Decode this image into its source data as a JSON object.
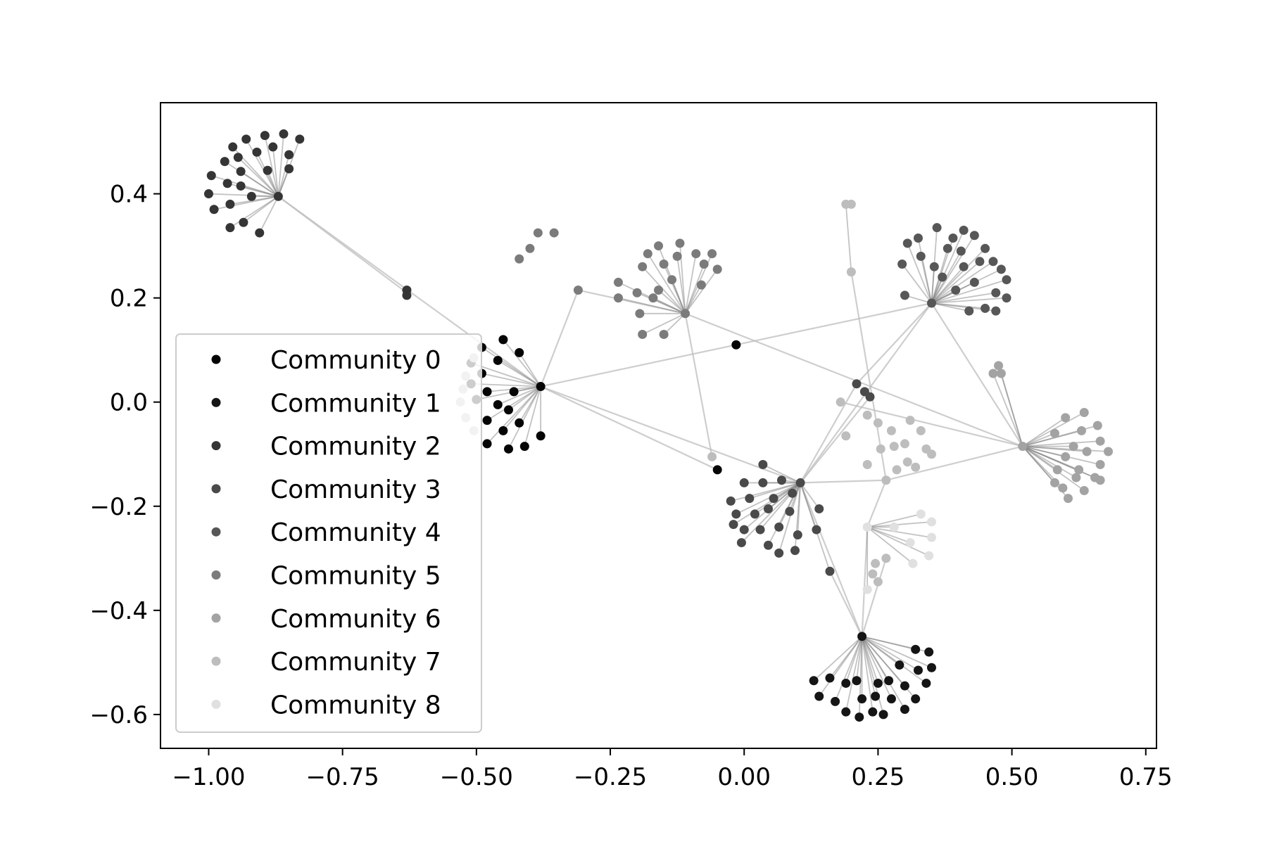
{
  "chart_data": {
    "type": "scatter",
    "title": "",
    "xlabel": "",
    "ylabel": "",
    "xlim": [
      -1.09,
      0.77
    ],
    "ylim": [
      -0.665,
      0.575
    ],
    "xticks": [
      -1.0,
      -0.75,
      -0.5,
      -0.25,
      0.0,
      0.25,
      0.5,
      0.75
    ],
    "xtick_labels": [
      "−1.00",
      "−0.75",
      "−0.50",
      "−0.25",
      "0.00",
      "0.25",
      "0.50",
      "0.75"
    ],
    "yticks": [
      0.4,
      0.2,
      0.0,
      -0.2,
      -0.4,
      -0.6
    ],
    "ytick_labels": [
      "0.4",
      "0.2",
      "0.0",
      "−0.2",
      "−0.4",
      "−0.6"
    ],
    "grid": false,
    "legend_position": "center-left",
    "edge_color": "#bdbdbd",
    "series": [
      {
        "name": "Community 0",
        "color": "#050505",
        "points": [
          [
            -0.38,
            0.03
          ],
          [
            -0.015,
            0.11
          ],
          [
            -0.05,
            -0.13
          ],
          [
            -0.45,
            0.12
          ],
          [
            -0.49,
            0.105
          ],
          [
            -0.42,
            0.095
          ],
          [
            -0.46,
            0.08
          ],
          [
            -0.51,
            0.075
          ],
          [
            -0.49,
            0.055
          ],
          [
            -0.51,
            0.035
          ],
          [
            -0.48,
            0.02
          ],
          [
            -0.43,
            0.02
          ],
          [
            -0.5,
            0.005
          ],
          [
            -0.46,
            -0.005
          ],
          [
            -0.44,
            -0.015
          ],
          [
            -0.48,
            -0.035
          ],
          [
            -0.42,
            -0.04
          ],
          [
            -0.45,
            -0.055
          ],
          [
            -0.38,
            -0.065
          ],
          [
            -0.48,
            -0.08
          ],
          [
            -0.44,
            -0.09
          ],
          [
            -0.41,
            -0.085
          ]
        ]
      },
      {
        "name": "Community 1",
        "color": "#151515",
        "points": [
          [
            0.22,
            -0.45
          ],
          [
            0.32,
            -0.475
          ],
          [
            0.345,
            -0.48
          ],
          [
            0.29,
            -0.505
          ],
          [
            0.325,
            -0.515
          ],
          [
            0.35,
            -0.51
          ],
          [
            0.13,
            -0.535
          ],
          [
            0.16,
            -0.53
          ],
          [
            0.19,
            -0.54
          ],
          [
            0.21,
            -0.535
          ],
          [
            0.25,
            -0.54
          ],
          [
            0.27,
            -0.535
          ],
          [
            0.3,
            -0.545
          ],
          [
            0.34,
            -0.54
          ],
          [
            0.14,
            -0.565
          ],
          [
            0.17,
            -0.575
          ],
          [
            0.22,
            -0.57
          ],
          [
            0.245,
            -0.565
          ],
          [
            0.275,
            -0.57
          ],
          [
            0.32,
            -0.57
          ],
          [
            0.19,
            -0.595
          ],
          [
            0.24,
            -0.595
          ],
          [
            0.26,
            -0.6
          ],
          [
            0.3,
            -0.59
          ],
          [
            0.215,
            -0.605
          ]
        ]
      },
      {
        "name": "Community 2",
        "color": "#353535",
        "points": [
          [
            -0.87,
            0.395
          ],
          [
            -0.63,
            0.215
          ],
          [
            -0.63,
            0.205
          ],
          [
            -0.83,
            0.505
          ],
          [
            -0.86,
            0.515
          ],
          [
            -0.895,
            0.512
          ],
          [
            -0.93,
            0.505
          ],
          [
            -0.955,
            0.49
          ],
          [
            -0.85,
            0.475
          ],
          [
            -0.88,
            0.49
          ],
          [
            -0.91,
            0.48
          ],
          [
            -0.945,
            0.47
          ],
          [
            -0.97,
            0.462
          ],
          [
            -0.89,
            0.445
          ],
          [
            -0.94,
            0.443
          ],
          [
            -0.85,
            0.448
          ],
          [
            -0.995,
            0.435
          ],
          [
            -0.965,
            0.42
          ],
          [
            -0.94,
            0.415
          ],
          [
            -1.0,
            0.4
          ],
          [
            -0.92,
            0.395
          ],
          [
            -0.96,
            0.38
          ],
          [
            -0.99,
            0.37
          ],
          [
            -0.935,
            0.345
          ],
          [
            -0.96,
            0.335
          ],
          [
            -0.905,
            0.325
          ]
        ]
      },
      {
        "name": "Community 3",
        "color": "#4a4a4a",
        "points": [
          [
            0.105,
            -0.155
          ],
          [
            0.21,
            0.035
          ],
          [
            0.225,
            0.02
          ],
          [
            0.235,
            0.01
          ],
          [
            0.035,
            -0.12
          ],
          [
            -0.0,
            -0.155
          ],
          [
            0.035,
            -0.155
          ],
          [
            0.07,
            -0.15
          ],
          [
            -0.025,
            -0.19
          ],
          [
            0.01,
            -0.185
          ],
          [
            0.055,
            -0.185
          ],
          [
            0.09,
            -0.175
          ],
          [
            -0.015,
            -0.215
          ],
          [
            0.02,
            -0.215
          ],
          [
            0.045,
            -0.205
          ],
          [
            0.085,
            -0.21
          ],
          [
            -0.02,
            -0.235
          ],
          [
            0.0,
            -0.245
          ],
          [
            0.03,
            -0.245
          ],
          [
            0.065,
            -0.24
          ],
          [
            -0.005,
            -0.27
          ],
          [
            0.045,
            -0.275
          ],
          [
            0.1,
            -0.255
          ],
          [
            0.065,
            -0.29
          ],
          [
            0.095,
            -0.285
          ],
          [
            0.135,
            -0.245
          ],
          [
            0.16,
            -0.325
          ],
          [
            0.14,
            -0.205
          ]
        ]
      },
      {
        "name": "Community 4",
        "color": "#575757",
        "points": [
          [
            0.35,
            0.19
          ],
          [
            0.305,
            0.305
          ],
          [
            0.325,
            0.315
          ],
          [
            0.36,
            0.335
          ],
          [
            0.39,
            0.315
          ],
          [
            0.41,
            0.33
          ],
          [
            0.43,
            0.32
          ],
          [
            0.45,
            0.295
          ],
          [
            0.295,
            0.265
          ],
          [
            0.33,
            0.28
          ],
          [
            0.355,
            0.26
          ],
          [
            0.38,
            0.295
          ],
          [
            0.405,
            0.29
          ],
          [
            0.41,
            0.26
          ],
          [
            0.44,
            0.27
          ],
          [
            0.465,
            0.27
          ],
          [
            0.48,
            0.255
          ],
          [
            0.49,
            0.235
          ],
          [
            0.43,
            0.23
          ],
          [
            0.47,
            0.21
          ],
          [
            0.49,
            0.2
          ],
          [
            0.37,
            0.24
          ],
          [
            0.395,
            0.215
          ],
          [
            0.42,
            0.175
          ],
          [
            0.45,
            0.18
          ],
          [
            0.47,
            0.175
          ],
          [
            0.3,
            0.205
          ]
        ]
      },
      {
        "name": "Community 5",
        "color": "#7b7b7b",
        "points": [
          [
            -0.11,
            0.17
          ],
          [
            -0.31,
            0.215
          ],
          [
            -0.385,
            0.325
          ],
          [
            -0.355,
            0.325
          ],
          [
            -0.4,
            0.295
          ],
          [
            -0.42,
            0.275
          ],
          [
            -0.18,
            0.285
          ],
          [
            -0.16,
            0.3
          ],
          [
            -0.12,
            0.305
          ],
          [
            -0.09,
            0.285
          ],
          [
            -0.06,
            0.285
          ],
          [
            -0.19,
            0.26
          ],
          [
            -0.15,
            0.265
          ],
          [
            -0.125,
            0.28
          ],
          [
            -0.075,
            0.265
          ],
          [
            -0.05,
            0.255
          ],
          [
            -0.235,
            0.23
          ],
          [
            -0.2,
            0.21
          ],
          [
            -0.16,
            0.215
          ],
          [
            -0.135,
            0.235
          ],
          [
            -0.08,
            0.225
          ],
          [
            -0.235,
            0.2
          ],
          [
            -0.17,
            0.2
          ],
          [
            -0.195,
            0.17
          ],
          [
            -0.19,
            0.13
          ],
          [
            -0.15,
            0.13
          ]
        ]
      },
      {
        "name": "Community 6",
        "color": "#a3a3a3",
        "points": [
          [
            0.52,
            -0.085
          ],
          [
            0.6,
            -0.03
          ],
          [
            0.635,
            -0.02
          ],
          [
            0.66,
            -0.045
          ],
          [
            0.63,
            -0.055
          ],
          [
            0.58,
            -0.06
          ],
          [
            0.615,
            -0.085
          ],
          [
            0.665,
            -0.075
          ],
          [
            0.68,
            -0.095
          ],
          [
            0.64,
            -0.095
          ],
          [
            0.6,
            -0.105
          ],
          [
            0.585,
            -0.13
          ],
          [
            0.625,
            -0.13
          ],
          [
            0.665,
            -0.12
          ],
          [
            0.62,
            -0.145
          ],
          [
            0.655,
            -0.145
          ],
          [
            0.58,
            -0.155
          ],
          [
            0.595,
            -0.165
          ],
          [
            0.635,
            -0.17
          ],
          [
            0.605,
            -0.185
          ],
          [
            0.665,
            -0.15
          ],
          [
            0.465,
            0.055
          ],
          [
            0.475,
            0.07
          ],
          [
            0.48,
            0.055
          ]
        ]
      },
      {
        "name": "Community 7",
        "color": "#bdbdbd",
        "points": [
          [
            0.19,
            0.38
          ],
          [
            0.2,
            0.38
          ],
          [
            0.2,
            0.25
          ],
          [
            0.265,
            -0.15
          ],
          [
            0.18,
            0.0
          ],
          [
            0.19,
            -0.065
          ],
          [
            0.23,
            -0.025
          ],
          [
            0.25,
            -0.04
          ],
          [
            0.275,
            -0.055
          ],
          [
            0.31,
            -0.035
          ],
          [
            0.33,
            -0.055
          ],
          [
            0.28,
            -0.085
          ],
          [
            0.255,
            -0.09
          ],
          [
            0.3,
            -0.08
          ],
          [
            0.34,
            -0.09
          ],
          [
            0.35,
            -0.1
          ],
          [
            0.23,
            -0.12
          ],
          [
            0.305,
            -0.115
          ],
          [
            0.32,
            -0.125
          ],
          [
            0.285,
            -0.13
          ],
          [
            -0.52,
            0.05
          ],
          [
            -0.505,
            0.085
          ],
          [
            -0.525,
            0.025
          ],
          [
            -0.52,
            -0.03
          ],
          [
            -0.53,
            0.0
          ],
          [
            -0.505,
            -0.055
          ],
          [
            -0.06,
            -0.105
          ],
          [
            0.24,
            -0.33
          ],
          [
            0.265,
            -0.3
          ],
          [
            0.245,
            -0.31
          ],
          [
            0.25,
            -0.345
          ]
        ]
      },
      {
        "name": "Community 8",
        "color": "#e0e0e0",
        "points": [
          [
            0.23,
            -0.24
          ],
          [
            0.33,
            -0.215
          ],
          [
            0.35,
            -0.23
          ],
          [
            0.35,
            -0.26
          ],
          [
            0.345,
            -0.295
          ],
          [
            0.31,
            -0.27
          ],
          [
            0.315,
            -0.31
          ],
          [
            0.28,
            -0.24
          ],
          [
            0.23,
            -0.36
          ]
        ]
      }
    ],
    "edges": [
      [
        -0.87,
        0.395,
        -0.38,
        0.03
      ],
      [
        -0.87,
        0.395,
        -0.63,
        0.21
      ],
      [
        -0.38,
        0.03,
        -0.31,
        0.215
      ],
      [
        -0.38,
        0.03,
        0.35,
        0.19
      ],
      [
        -0.38,
        0.03,
        0.105,
        -0.155
      ],
      [
        -0.38,
        0.03,
        -0.05,
        -0.13
      ],
      [
        -0.31,
        0.215,
        -0.11,
        0.17
      ],
      [
        -0.11,
        0.17,
        -0.06,
        -0.105
      ],
      [
        -0.11,
        0.17,
        0.52,
        -0.085
      ],
      [
        0.35,
        0.19,
        0.105,
        -0.155
      ],
      [
        0.35,
        0.19,
        0.21,
        0.035
      ],
      [
        0.35,
        0.19,
        0.52,
        -0.085
      ],
      [
        0.52,
        -0.085,
        0.265,
        -0.15
      ],
      [
        0.52,
        -0.085,
        0.18,
        0.0
      ],
      [
        0.105,
        -0.155,
        0.265,
        -0.15
      ],
      [
        0.105,
        -0.155,
        0.22,
        -0.45
      ],
      [
        0.105,
        -0.155,
        0.21,
        0.035
      ],
      [
        0.105,
        -0.155,
        0.235,
        0.01
      ],
      [
        0.265,
        -0.15,
        0.23,
        -0.24
      ],
      [
        0.265,
        -0.15,
        0.2,
        0.25
      ],
      [
        0.23,
        -0.24,
        0.22,
        -0.45
      ],
      [
        0.22,
        -0.45,
        0.265,
        -0.3
      ],
      [
        0.22,
        -0.45,
        0.16,
        -0.325
      ]
    ]
  }
}
